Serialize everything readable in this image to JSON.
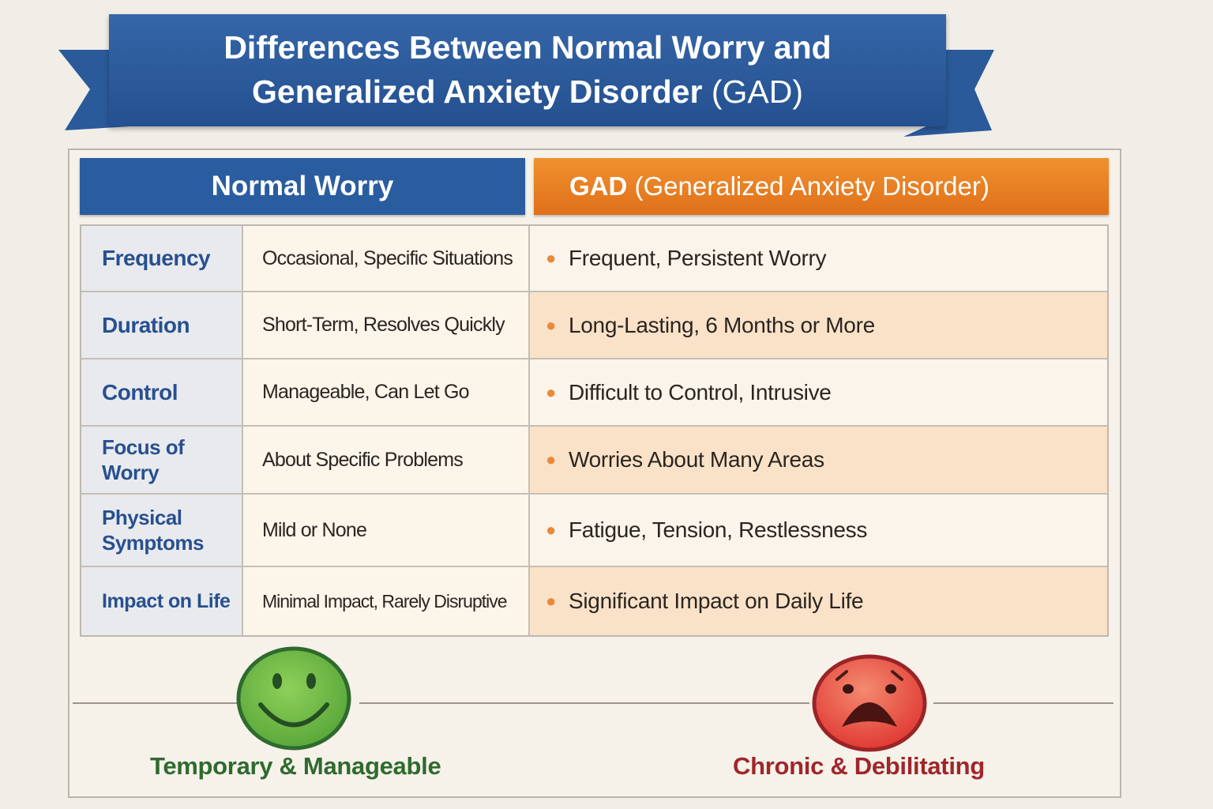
{
  "title": {
    "line1": "Differences Between Normal Worry and",
    "line2_main": "Generalized Anxiety Disorder",
    "line2_paren": "(GAD)"
  },
  "headers": {
    "normal": "Normal Worry",
    "gad_main": "GAD",
    "gad_paren": "(Generalized Anxiety Disorder)"
  },
  "rows": [
    {
      "label": "Frequency",
      "normal": "Occasional, Specific Situations",
      "gad": "Frequent, Persistent Worry"
    },
    {
      "label": "Duration",
      "normal": "Short-Term, Resolves Quickly",
      "gad": "Long-Lasting, 6 Months or More"
    },
    {
      "label": "Control",
      "normal": "Manageable, Can Let Go",
      "gad": "Difficult to Control, Intrusive"
    },
    {
      "label": "Focus of Worry",
      "normal": "About Specific Problems",
      "gad": "Worries About Many Areas"
    },
    {
      "label": "Physical Symptoms",
      "normal": "Mild or None",
      "gad": "Fatigue, Tension, Restlessness"
    },
    {
      "label": "Impact on Life",
      "normal": "Minimal Impact, Rarely Disruptive",
      "gad": "Significant Impact on Daily Life"
    }
  ],
  "footer": {
    "normal_caption": "Temporary & Manageable",
    "gad_caption": "Chronic & Debilitating",
    "normal_icon": "smiley-face-icon",
    "gad_icon": "distressed-face-icon"
  },
  "colors": {
    "blue": "#2a5ca0",
    "orange": "#e8801f",
    "green": "#2f6a2e",
    "red": "#a0262a"
  }
}
